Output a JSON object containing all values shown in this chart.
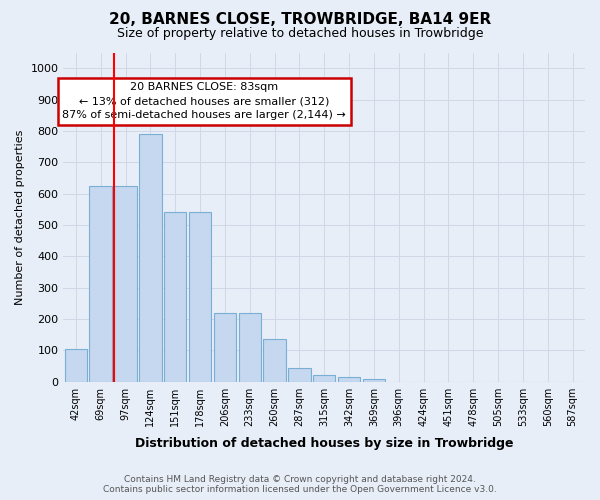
{
  "title": "20, BARNES CLOSE, TROWBRIDGE, BA14 9ER",
  "subtitle": "Size of property relative to detached houses in Trowbridge",
  "xlabel": "Distribution of detached houses by size in Trowbridge",
  "ylabel": "Number of detached properties",
  "footer_line1": "Contains HM Land Registry data © Crown copyright and database right 2024.",
  "footer_line2": "Contains public sector information licensed under the Open Government Licence v3.0.",
  "categories": [
    "42sqm",
    "69sqm",
    "97sqm",
    "124sqm",
    "151sqm",
    "178sqm",
    "206sqm",
    "233sqm",
    "260sqm",
    "287sqm",
    "315sqm",
    "342sqm",
    "369sqm",
    "396sqm",
    "424sqm",
    "451sqm",
    "478sqm",
    "505sqm",
    "533sqm",
    "560sqm",
    "587sqm"
  ],
  "values": [
    105,
    625,
    625,
    790,
    540,
    540,
    220,
    220,
    135,
    45,
    20,
    15,
    10,
    0,
    0,
    0,
    0,
    0,
    0,
    0,
    0
  ],
  "bar_color": "#c5d8ef",
  "bar_edge_color": "#7aafd4",
  "background_color": "#e8eef8",
  "grid_color": "#d0d8e8",
  "red_line_x": 1.55,
  "annotation_text": "20 BARNES CLOSE: 83sqm\n← 13% of detached houses are smaller (312)\n87% of semi-detached houses are larger (2,144) →",
  "annotation_box_facecolor": "#ffffff",
  "annotation_box_edgecolor": "#cc0000",
  "ylim": [
    0,
    1050
  ],
  "yticks": [
    0,
    100,
    200,
    300,
    400,
    500,
    600,
    700,
    800,
    900,
    1000
  ]
}
